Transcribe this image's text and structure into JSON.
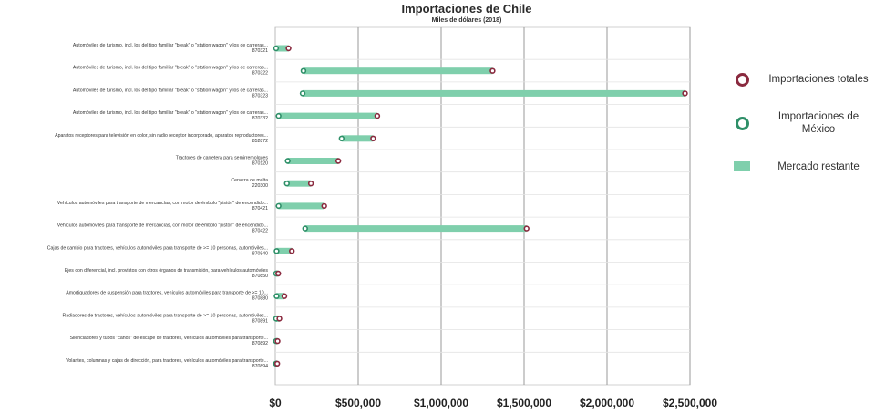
{
  "chart_data": {
    "type": "dumbbell",
    "title": "Importaciones de Chile",
    "subtitle": "Miles de dólares (2018)",
    "xlabel": "",
    "ylabel": "",
    "xlim": [
      0,
      2500000
    ],
    "xticks": [
      "$0",
      "$500,000",
      "$1,000,000",
      "$1,500,000",
      "$2,000,000",
      "$2,500,000"
    ],
    "grid": true,
    "legend_position": "right",
    "colors": {
      "total": "#8a2a3f",
      "mexico": "#2e8f68",
      "remaining": "#7fcfac"
    },
    "categories": [
      {
        "label": "Automóviles de turismo, incl. los del tipo familiar \"break\" o \"station wagon\" y los de carreras...",
        "code": "870321",
        "mexico": 5000,
        "total": 80000
      },
      {
        "label": "Automóviles de turismo, incl. los del tipo familiar \"break\" o \"station wagon\" y los de carreras...",
        "code": "870322",
        "mexico": 170000,
        "total": 1310000
      },
      {
        "label": "Automóviles de turismo, incl. los del tipo familiar \"break\" o \"station wagon\" y los de carreras...",
        "code": "870323",
        "mexico": 165000,
        "total": 2470000
      },
      {
        "label": "Automóviles de turismo, incl. los del tipo familiar \"break\" o \"station wagon\" y los de carreras...",
        "code": "870332",
        "mexico": 20000,
        "total": 615000
      },
      {
        "label": "Aparatos receptores para televisión en color, sin radio receptor incorporado, aparatos reproductores...",
        "code": "852872",
        "mexico": 400000,
        "total": 590000
      },
      {
        "label": "Tractores de carretera para semirremolques",
        "code": "870120",
        "mexico": 75000,
        "total": 380000
      },
      {
        "label": "Cerveza de malta",
        "code": "220300",
        "mexico": 70000,
        "total": 215000
      },
      {
        "label": "Vehículos automóviles para transporte de mercancías, con motor de émbolo \"pistón\" de encendido...",
        "code": "870421",
        "mexico": 20000,
        "total": 295000
      },
      {
        "label": "Vehículos automóviles para transporte de mercancías, con motor de émbolo \"pistón\" de encendido...",
        "code": "870422",
        "mexico": 180000,
        "total": 1515000
      },
      {
        "label": "Cajas de cambio para tractores, vehículos automóviles para transporte de >= 10 personas, automóviles...",
        "code": "870840",
        "mexico": 8000,
        "total": 100000
      },
      {
        "label": "Ejes con diferencial, incl. provistos con otros órganos de transmisión, para vehículos automóviles",
        "code": "870850",
        "mexico": 5000,
        "total": 18000
      },
      {
        "label": "Amortiguadores de suspensión para tractores, vehículos automóviles para transporte de >= 10...",
        "code": "870880",
        "mexico": 8000,
        "total": 55000
      },
      {
        "label": "Radiadores de tractores, vehículos automóviles para transporte de >= 10 personas, automóviles...",
        "code": "870891",
        "mexico": 5000,
        "total": 25000
      },
      {
        "label": "Silenciadores y tubos \"caños\" de escape de tractores, vehículos automóviles para transporte...",
        "code": "870892",
        "mexico": 4000,
        "total": 14000
      },
      {
        "label": "Volantes, columnas y cajas de dirección, para tractores, vehículos automóviles para transporte...",
        "code": "870894",
        "mexico": 4000,
        "total": 12000
      }
    ]
  },
  "legend": {
    "total": "Importaciones totales",
    "mexico": "Importaciones de México",
    "remaining": "Mercado restante"
  }
}
